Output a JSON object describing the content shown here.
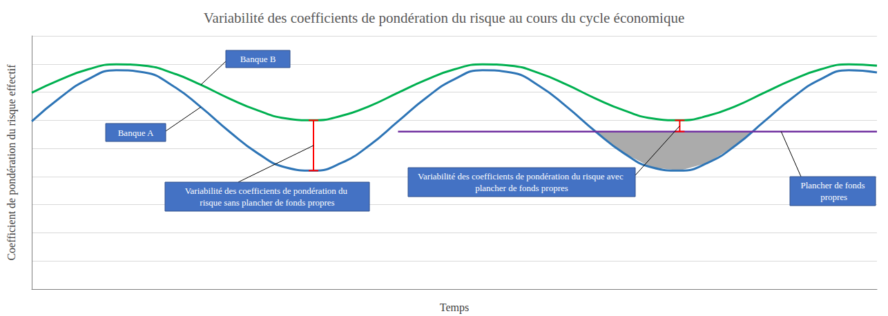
{
  "chart_data": {
    "type": "line",
    "title": "Variabilité des coefficients de pondération du risque au cours du cycle économique",
    "x_label": "Temps",
    "y_label": "Coefficient de pondération du risque effectif",
    "x": [
      0,
      1,
      2,
      3,
      4,
      5,
      6,
      7,
      8,
      9,
      10,
      11,
      12,
      13,
      14,
      15,
      16,
      17,
      18,
      19,
      20,
      21,
      22,
      23,
      24,
      25,
      26,
      27,
      28,
      29,
      30
    ],
    "xlim": [
      0,
      30
    ],
    "ylim": [
      0,
      9
    ],
    "yticks": [
      0,
      1,
      2,
      3,
      4,
      5,
      6,
      7,
      8,
      9
    ],
    "grid": true,
    "tick_labels": false,
    "series": [
      {
        "name": "Banque A",
        "color": "#2E75B6",
        "values": [
          5.96,
          6.8,
          7.46,
          7.78,
          7.7,
          7.23,
          6.47,
          5.61,
          4.84,
          4.33,
          4.21,
          4.49,
          5.12,
          5.96,
          6.8,
          7.46,
          7.78,
          7.7,
          7.23,
          6.47,
          5.61,
          4.84,
          4.33,
          4.21,
          4.49,
          5.12,
          5.96,
          6.8,
          7.46,
          7.78,
          7.7
        ]
      },
      {
        "name": "Banque B",
        "color": "#00B050",
        "values": [
          6.98,
          7.44,
          7.81,
          7.99,
          7.94,
          7.68,
          7.26,
          6.78,
          6.36,
          6.07,
          6.0,
          6.16,
          6.51,
          6.98,
          7.44,
          7.81,
          7.99,
          7.94,
          7.68,
          7.26,
          6.78,
          6.36,
          6.07,
          6.0,
          6.16,
          6.51,
          6.98,
          7.44,
          7.81,
          7.99,
          7.94
        ]
      },
      {
        "name": "Plancher de fonds propres",
        "color": "#7030A0",
        "values": [
          null,
          null,
          null,
          null,
          null,
          null,
          null,
          null,
          null,
          null,
          null,
          null,
          null,
          5.6,
          5.6,
          5.6,
          5.6,
          5.6,
          5.6,
          5.6,
          5.6,
          5.6,
          5.6,
          5.6,
          5.6,
          5.6,
          5.6,
          5.6,
          5.6,
          5.6,
          5.6
        ]
      }
    ],
    "ranges": [
      {
        "label": "Variabilité des coefficients de pondération du risque sans plancher de fonds propres",
        "x": 10,
        "from": 4.21,
        "to": 6.0
      },
      {
        "label": "Variabilité des coefficients de pondération du risque avec plancher de fonds propres",
        "x": 23,
        "from": 5.6,
        "to": 6.0
      }
    ]
  }
}
